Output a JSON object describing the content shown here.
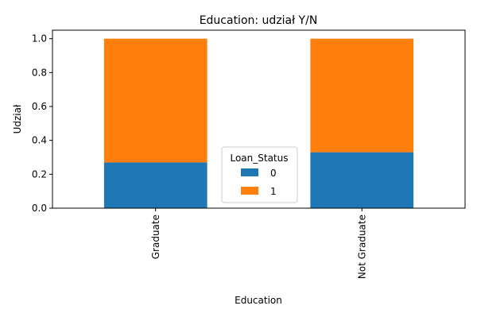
{
  "chart_data": {
    "type": "bar",
    "stacked": true,
    "title": "Education: udział Y/N",
    "xlabel": "Education",
    "ylabel": "Udział",
    "categories": [
      "Graduate",
      "Not Graduate"
    ],
    "series": [
      {
        "name": "0",
        "values": [
          0.27,
          0.33
        ],
        "color": "#1f77b4"
      },
      {
        "name": "1",
        "values": [
          0.73,
          0.67
        ],
        "color": "#ff7f0e"
      }
    ],
    "ylim": [
      0,
      1.05
    ],
    "yticks": [
      0.0,
      0.2,
      0.4,
      0.6,
      0.8,
      1.0
    ],
    "ytick_labels": [
      "0.0",
      "0.2",
      "0.4",
      "0.6",
      "0.8",
      "1.0"
    ],
    "x_tick_rotation": "vertical",
    "grid": false,
    "legend": {
      "title": "Loan_Status",
      "placement": "lower center",
      "entries": [
        "0",
        "1"
      ]
    }
  }
}
